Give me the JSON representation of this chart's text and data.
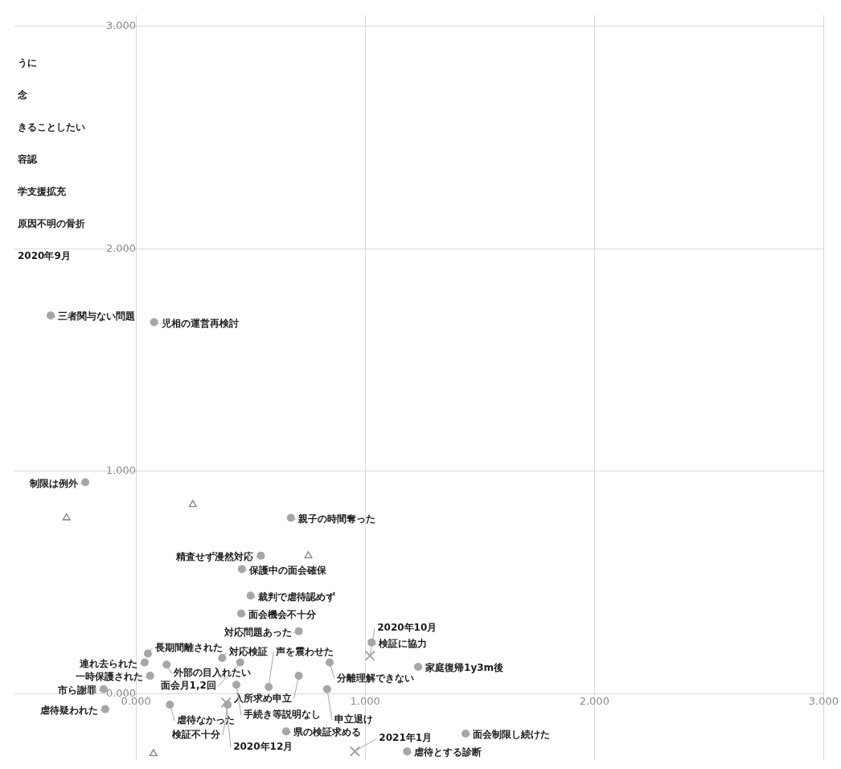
{
  "chart_data": {
    "type": "scatter",
    "xlim": [
      -0.53,
      3.0
    ],
    "ylim": [
      -0.3,
      3.05
    ],
    "xticks": [
      {
        "value": 0,
        "label": "0.000"
      },
      {
        "value": 1,
        "label": "1.000"
      },
      {
        "value": 2,
        "label": "2.000"
      },
      {
        "value": 3,
        "label": "3.000"
      }
    ],
    "yticks": [
      {
        "value": 0,
        "label": "0.000"
      },
      {
        "value": 1,
        "label": "1.000"
      },
      {
        "value": 2,
        "label": "2.000"
      },
      {
        "value": 3,
        "label": "3.000"
      }
    ],
    "grid": true,
    "legend": false,
    "series": [
      {
        "type": "scatter",
        "marker": "circle",
        "color": "#a6a6a6",
        "x": [
          -0.372,
          0.079,
          -0.221,
          0.676,
          0.545,
          0.462,
          0.5,
          0.459,
          0.71,
          1.028,
          0.052,
          0.038,
          0.134,
          0.376,
          0.455,
          0.845,
          0.71,
          1.231,
          0.062,
          0.438,
          0.579,
          0.834,
          -0.141,
          -0.134,
          0.148,
          0.4,
          0.655,
          1.438,
          1.183
        ],
        "values": [
          1.7,
          1.67,
          0.95,
          0.79,
          0.62,
          0.56,
          0.44,
          0.36,
          0.28,
          0.23,
          0.18,
          0.14,
          0.13,
          0.16,
          0.14,
          0.14,
          0.08,
          0.12,
          0.08,
          0.04,
          0.03,
          0.02,
          0.02,
          -0.07,
          -0.05,
          -0.05,
          -0.17,
          -0.18,
          -0.26
        ]
      },
      {
        "type": "scatter",
        "marker": "triangle",
        "color": "#7f7f7f",
        "x": [
          -0.303,
          0.248,
          0.752,
          0.076
        ],
        "values": [
          0.79,
          0.85,
          0.62,
          -0.27
        ]
      },
      {
        "type": "scatter",
        "marker": "cross",
        "color": "#a6a6a6",
        "x": [
          1.021,
          0.393,
          0.955
        ],
        "values": [
          0.17,
          -0.04,
          -0.26
        ]
      }
    ],
    "annotations": [
      {
        "text": "三者関与ない問題",
        "x": -0.372,
        "y": 1.7
      },
      {
        "text": "児相の運営再検討",
        "x": 0.079,
        "y": 1.67
      },
      {
        "text": "制限は例外",
        "x": -0.221,
        "y": 0.95
      },
      {
        "text": "親子の時間奪った",
        "x": 0.676,
        "y": 0.79
      },
      {
        "text": "精査せず漫然対応",
        "x": 0.545,
        "y": 0.62
      },
      {
        "text": "保護中の面会確保",
        "x": 0.462,
        "y": 0.56
      },
      {
        "text": "裁判で虐待認めず",
        "x": 0.5,
        "y": 0.44
      },
      {
        "text": "面会機会不十分",
        "x": 0.459,
        "y": 0.36
      },
      {
        "text": "対応問題あった",
        "x": 0.71,
        "y": 0.28
      },
      {
        "text": "検証に協力",
        "x": 1.028,
        "y": 0.23
      },
      {
        "text": "長期間離された",
        "x": 0.052,
        "y": 0.18
      },
      {
        "text": "連れ去られた",
        "x": 0.038,
        "y": 0.14
      },
      {
        "text": "外部の目入れたい",
        "x": 0.134,
        "y": 0.13
      },
      {
        "text": "対応検証",
        "x": 0.376,
        "y": 0.16
      },
      {
        "text": "面会月1,2回",
        "x": 0.455,
        "y": 0.14
      },
      {
        "text": "分離理解できない",
        "x": 0.845,
        "y": 0.14
      },
      {
        "text": "入所求め申立",
        "x": 0.71,
        "y": 0.08
      },
      {
        "text": "家庭復帰1y3m後",
        "x": 1.231,
        "y": 0.12
      },
      {
        "text": "一時保護された",
        "x": 0.062,
        "y": 0.08
      },
      {
        "text": "手続き等説明なし",
        "x": 0.438,
        "y": 0.04
      },
      {
        "text": "声を震わせた",
        "x": 0.579,
        "y": 0.03
      },
      {
        "text": "申立退け",
        "x": 0.834,
        "y": 0.02
      },
      {
        "text": "市ら謝罪",
        "x": -0.141,
        "y": 0.02
      },
      {
        "text": "虐待疑われた",
        "x": -0.134,
        "y": -0.07
      },
      {
        "text": "虐待なかった",
        "x": 0.148,
        "y": -0.05
      },
      {
        "text": "検証不十分",
        "x": 0.4,
        "y": -0.05
      },
      {
        "text": "県の検証求める",
        "x": 0.655,
        "y": -0.17
      },
      {
        "text": "面会制限し続けた",
        "x": 1.438,
        "y": -0.18
      },
      {
        "text": "虐待とする診断",
        "x": 1.183,
        "y": -0.26
      },
      {
        "text": "2020年10月",
        "x": 1.021,
        "y": 0.17
      },
      {
        "text": "2020年12月",
        "x": 0.393,
        "y": -0.04
      },
      {
        "text": "2021年1月",
        "x": 0.955,
        "y": -0.26
      },
      "うに",
      "念",
      "きることしたい",
      "容認",
      "学支援拡充",
      "原因不明の骨折",
      "2020年9月"
    ]
  }
}
